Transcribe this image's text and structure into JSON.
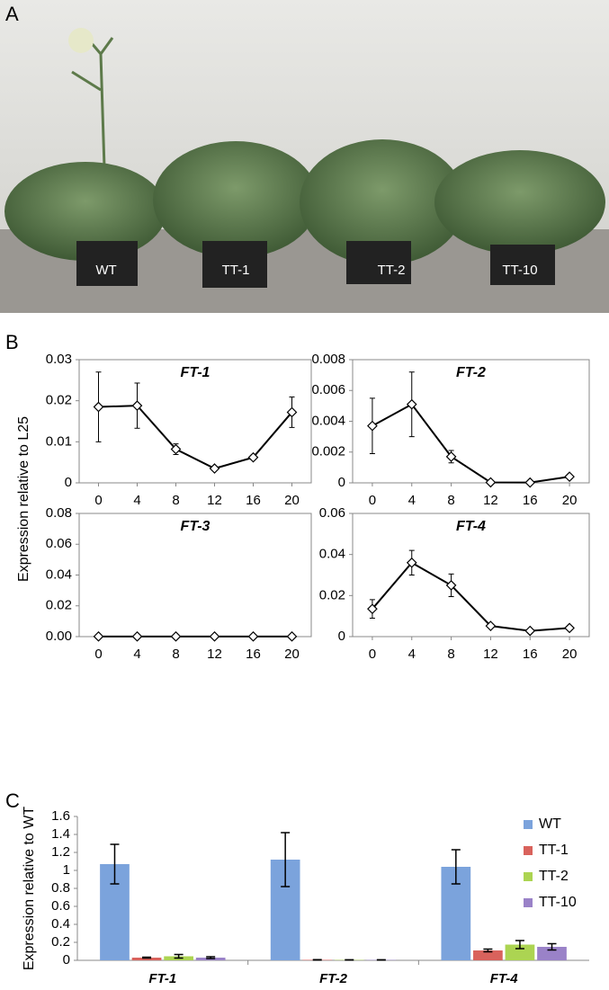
{
  "panel_labels": [
    "A",
    "B",
    "C"
  ],
  "photo_captions": [
    "WT",
    "TT-1",
    "TT-2",
    "TT-10"
  ],
  "chart_data": [
    {
      "type": "line",
      "title": "FT-1",
      "ylabel": "Expression relative to L25",
      "x": [
        0,
        4,
        8,
        12,
        16,
        20
      ],
      "xlim": [
        -2,
        22
      ],
      "xticks": [
        0,
        4,
        8,
        12,
        16,
        20
      ],
      "values": [
        0.0185,
        0.0188,
        0.0082,
        0.0035,
        0.0062,
        0.0172
      ],
      "errors": [
        0.0085,
        0.0055,
        0.0013,
        0.0004,
        0.0006,
        0.0037
      ],
      "ylim": [
        0,
        0.03
      ],
      "yticks": [
        0,
        0.01,
        0.02,
        0.03
      ],
      "color": "#000000"
    },
    {
      "type": "line",
      "title": "FT-2",
      "x": [
        0,
        4,
        8,
        12,
        16,
        20
      ],
      "xlim": [
        -2,
        22
      ],
      "xticks": [
        0,
        4,
        8,
        12,
        16,
        20
      ],
      "values": [
        0.0037,
        0.0051,
        0.0017,
        3e-05,
        2e-05,
        0.0004
      ],
      "errors": [
        0.0018,
        0.0021,
        0.0004,
        0,
        0,
        0.0001
      ],
      "ylim": [
        0,
        0.008
      ],
      "yticks": [
        0,
        0.002,
        0.004,
        0.006,
        0.008
      ],
      "color": "#000000"
    },
    {
      "type": "line",
      "title": "FT-3",
      "x": [
        0,
        4,
        8,
        12,
        16,
        20
      ],
      "xlim": [
        -2,
        22
      ],
      "xticks": [
        0,
        4,
        8,
        12,
        16,
        20
      ],
      "values": [
        0.0001,
        0.0001,
        0.0001,
        0.0001,
        0.0001,
        0.0001
      ],
      "errors": [
        0,
        0,
        0,
        0,
        0,
        0
      ],
      "ylim": [
        0,
        0.08
      ],
      "yticks": [
        {
          "value": 0,
          "label": "0.00"
        },
        0.02,
        0.04,
        0.06,
        0.08
      ],
      "color": "#000000"
    },
    {
      "type": "line",
      "title": "FT-4",
      "x": [
        0,
        4,
        8,
        12,
        16,
        20
      ],
      "xlim": [
        -2,
        22
      ],
      "xticks": [
        0,
        4,
        8,
        12,
        16,
        20
      ],
      "values": [
        0.0135,
        0.036,
        0.025,
        0.0052,
        0.0028,
        0.0042
      ],
      "errors": [
        0.0045,
        0.006,
        0.0055,
        0.0008,
        0.0004,
        0.0004
      ],
      "ylim": [
        0,
        0.06
      ],
      "yticks": [
        0,
        0.02,
        0.04,
        0.06
      ],
      "color": "#000000"
    },
    {
      "type": "bar",
      "ylabel": "Expression relative to WT",
      "categories": [
        "FT-1",
        "FT-2",
        "FT-4"
      ],
      "series": [
        {
          "name": "WT",
          "color": "#7ba3dc",
          "values": [
            1.07,
            1.12,
            1.04
          ],
          "errors": [
            0.22,
            0.3,
            0.19
          ]
        },
        {
          "name": "TT-1",
          "color": "#d9625c",
          "values": [
            0.03,
            0.005,
            0.11
          ],
          "errors": [
            0.005,
            0.002,
            0.015
          ]
        },
        {
          "name": "TT-2",
          "color": "#acd452",
          "values": [
            0.045,
            0.004,
            0.175
          ],
          "errors": [
            0.02,
            0.002,
            0.045
          ]
        },
        {
          "name": "TT-10",
          "color": "#9a82c8",
          "values": [
            0.03,
            0.004,
            0.15
          ],
          "errors": [
            0.01,
            0.002,
            0.035
          ]
        }
      ],
      "ylim": [
        0,
        1.6
      ],
      "yticks": [
        0,
        0.2,
        0.4,
        0.6,
        0.8,
        1,
        1.2,
        1.4,
        1.6
      ],
      "legend": "top-right"
    }
  ]
}
